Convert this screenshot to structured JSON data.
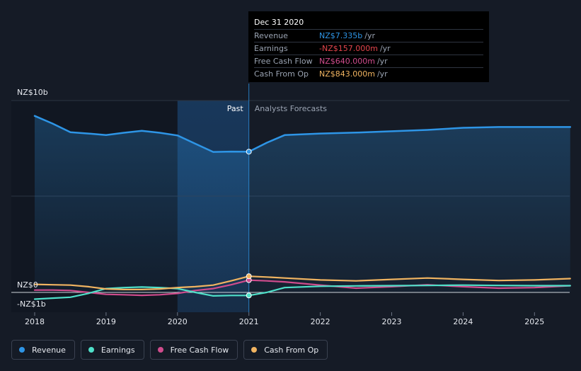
{
  "chart_data": {
    "type": "line",
    "title": "",
    "xlabel": "",
    "ylabel": "",
    "ylim": [
      -1.5,
      10.3
    ],
    "y_ticks": [
      {
        "value": 10,
        "label": "NZ$10b"
      },
      {
        "value": 0,
        "label": "NZ$0"
      },
      {
        "value": -1,
        "label": "-NZ$1b"
      }
    ],
    "x_ticks": [
      "2018",
      "2019",
      "2020",
      "2021",
      "2022",
      "2023",
      "2024",
      "2025"
    ],
    "xlim": [
      2017.7,
      2025.5
    ],
    "divider_x": 2021.0,
    "past_highlight_start": 2020.0,
    "past_label": "Past",
    "forecast_label": "Analysts Forecasts",
    "series": [
      {
        "name": "Revenue",
        "color": "#2e95e6",
        "x": [
          2018.0,
          2018.25,
          2018.5,
          2018.75,
          2019.0,
          2019.25,
          2019.5,
          2019.75,
          2020.0,
          2020.25,
          2020.5,
          2020.75,
          2021.0,
          2021.25,
          2021.5,
          2022.0,
          2022.5,
          2023.0,
          2023.5,
          2024.0,
          2024.5,
          2025.0,
          2025.5
        ],
        "values": [
          9.2,
          8.8,
          8.35,
          8.28,
          8.2,
          8.32,
          8.42,
          8.32,
          8.18,
          7.75,
          7.32,
          7.34,
          7.335,
          7.8,
          8.2,
          8.28,
          8.33,
          8.4,
          8.47,
          8.58,
          8.62,
          8.62,
          8.62
        ]
      },
      {
        "name": "Earnings",
        "color": "#4fe0c9",
        "x": [
          2018.0,
          2018.25,
          2018.5,
          2018.75,
          2019.0,
          2019.25,
          2019.5,
          2019.75,
          2020.0,
          2020.25,
          2020.5,
          2020.75,
          2021.0,
          2021.25,
          2021.5,
          2022.0,
          2022.5,
          2023.0,
          2023.5,
          2024.0,
          2024.5,
          2025.0,
          2025.5
        ],
        "values": [
          -0.35,
          -0.3,
          -0.25,
          -0.05,
          0.2,
          0.25,
          0.28,
          0.25,
          0.2,
          0.0,
          -0.18,
          -0.16,
          -0.157,
          0.0,
          0.25,
          0.32,
          0.34,
          0.35,
          0.36,
          0.38,
          0.36,
          0.35,
          0.35
        ]
      },
      {
        "name": "Free Cash Flow",
        "color": "#d04c8d",
        "x": [
          2018.0,
          2018.25,
          2018.5,
          2018.75,
          2019.0,
          2019.25,
          2019.5,
          2019.75,
          2020.0,
          2020.25,
          2020.5,
          2020.75,
          2021.0,
          2021.25,
          2021.5,
          2022.0,
          2022.5,
          2023.0,
          2023.5,
          2024.0,
          2024.5,
          2025.0,
          2025.5
        ],
        "values": [
          0.12,
          0.12,
          0.1,
          0.0,
          -0.1,
          -0.12,
          -0.15,
          -0.12,
          -0.05,
          0.1,
          0.2,
          0.4,
          0.64,
          0.6,
          0.55,
          0.38,
          0.22,
          0.3,
          0.4,
          0.3,
          0.22,
          0.25,
          0.35
        ]
      },
      {
        "name": "Cash From Op",
        "color": "#f1b461",
        "x": [
          2018.0,
          2018.25,
          2018.5,
          2018.75,
          2019.0,
          2019.25,
          2019.5,
          2019.75,
          2020.0,
          2020.25,
          2020.5,
          2020.75,
          2021.0,
          2021.25,
          2021.5,
          2022.0,
          2022.5,
          2023.0,
          2023.5,
          2024.0,
          2024.5,
          2025.0,
          2025.5
        ],
        "values": [
          0.42,
          0.4,
          0.38,
          0.3,
          0.18,
          0.15,
          0.15,
          0.18,
          0.25,
          0.3,
          0.38,
          0.6,
          0.843,
          0.8,
          0.75,
          0.65,
          0.6,
          0.68,
          0.75,
          0.68,
          0.62,
          0.65,
          0.72
        ]
      }
    ]
  },
  "tooltip": {
    "date": "Dec 31 2020",
    "rows": [
      {
        "name": "Revenue",
        "value": "NZ$7.335b",
        "unit": "/yr",
        "color": "#2e95e6"
      },
      {
        "name": "Earnings",
        "value": "-NZ$157.000m",
        "unit": "/yr",
        "color": "#e3454c"
      },
      {
        "name": "Free Cash Flow",
        "value": "NZ$640.000m",
        "unit": "/yr",
        "color": "#d04c8d"
      },
      {
        "name": "Cash From Op",
        "value": "NZ$843.000m",
        "unit": "/yr",
        "color": "#f1b461"
      }
    ]
  },
  "legend": [
    {
      "label": "Revenue",
      "color": "#2e95e6"
    },
    {
      "label": "Earnings",
      "color": "#4fe0c9"
    },
    {
      "label": "Free Cash Flow",
      "color": "#d04c8d"
    },
    {
      "label": "Cash From Op",
      "color": "#f1b461"
    }
  ]
}
